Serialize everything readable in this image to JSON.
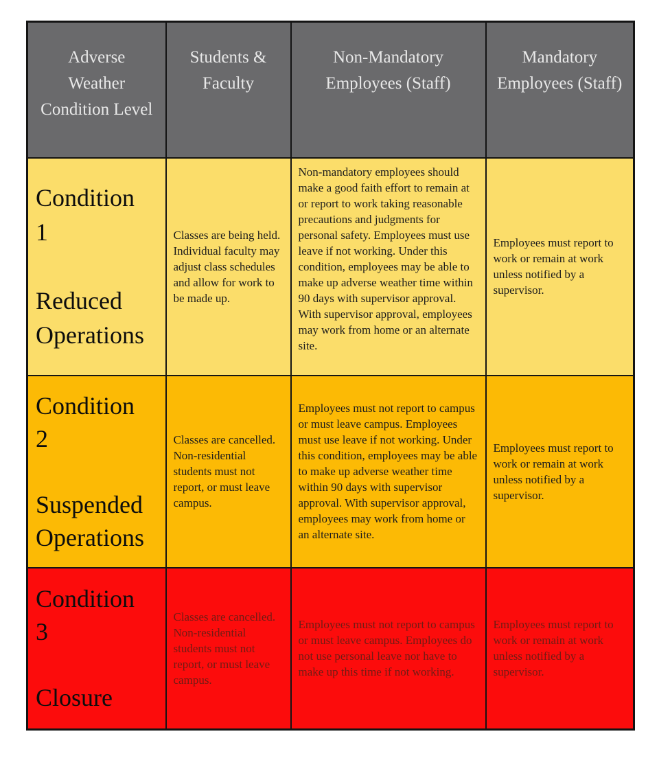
{
  "colors": {
    "header-bg": "#6a6a6c",
    "header-text": "#e8e8e8",
    "row1-bg": "#fbdd6a",
    "row2-bg": "#fcba05",
    "row3-bg": "#fc0c0c",
    "row3-text": "#701c15",
    "body-text": "#1c1c1c",
    "border-color": "#141414"
  },
  "table": {
    "headers": [
      "Adverse Weather Condition Level",
      "Students & Faculty",
      "Non-Mandatory Employees (Staff)",
      "Mandatory Employees (Staff)"
    ],
    "rows": [
      {
        "level": "Condition\n1\n\nReduced Operations",
        "students_faculty": "Classes are being held. Individual faculty may adjust class schedules and allow for work to be made up.",
        "non_mandatory": "Non-mandatory employees should make a good faith effort to remain at or report to work taking reasonable precautions and judgments for personal safety. Employees must use leave if not working.  Under this condition, employees may be able to make up adverse weather time within 90 days with supervisor approval. With supervisor approval, employees may work from home or an alternate site.",
        "mandatory": "Employees must report to work or remain at work unless notified by a supervisor."
      },
      {
        "level": "Condition\n2\n\nSuspended Operations",
        "students_faculty": "Classes are cancelled. Non-residential students must not report, or must leave campus.",
        "non_mandatory": "Employees must not report to campus or must leave campus. Employees must use leave if not working.  Under this condition, employees may be able to make up adverse weather time within 90 days with supervisor approval. With supervisor approval, employees may work from home or an alternate site.",
        "mandatory": "Employees must report to work or remain at work unless notified by a supervisor."
      },
      {
        "level": "Condition\n3\n\nClosure",
        "students_faculty": "Classes are cancelled. Non-residential students must not report, or must leave campus.",
        "non_mandatory": "Employees must not report to campus or must leave campus. Employees do not use personal leave nor have to make up this time if not working.",
        "mandatory": "Employees must report to work or remain at work unless notified by a supervisor."
      }
    ]
  }
}
